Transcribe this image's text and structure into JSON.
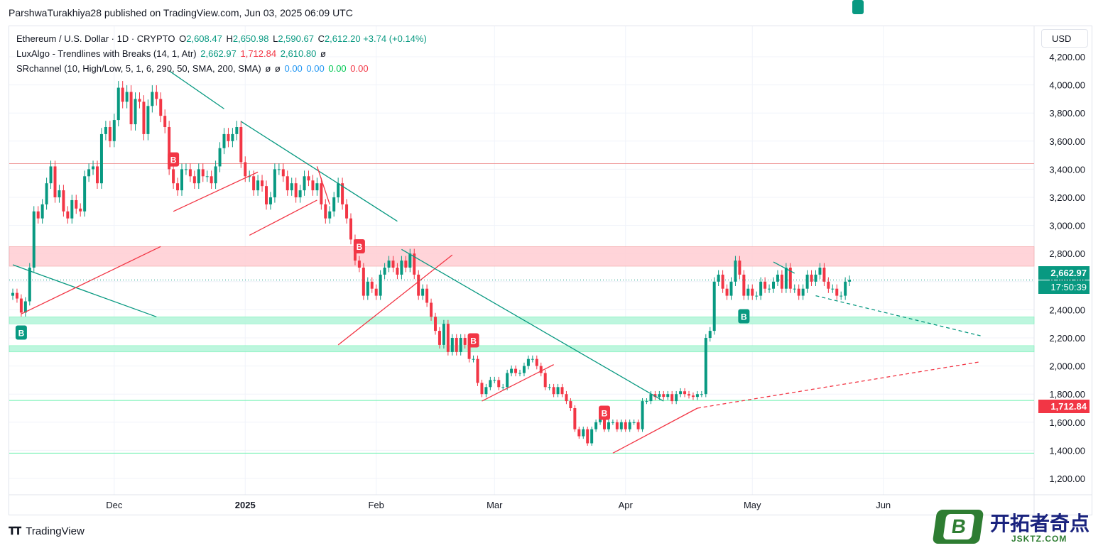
{
  "header": {
    "published_line": "ParshwaTurakhiya28 published on TradingView.com, Jun 03, 2025 06:09 UTC"
  },
  "legend": {
    "symbol_line": "Ethereum / U.S. Dollar · 1D · CRYPTO",
    "open_label": "O",
    "open": "2,608.47",
    "high_label": "H",
    "high": "2,650.98",
    "low_label": "L",
    "low": "2,590.67",
    "close_label": "C",
    "close": "2,612.20",
    "change": "+3.74 (+0.14%)",
    "luxalgo_title": "LuxAlgo - Trendlines with Breaks (14, 1, Atr)",
    "luxalgo_vals": [
      "2,662.97",
      "1,712.84",
      "2,610.80",
      "ø"
    ],
    "sr_title": "SRchannel (10, High/Low, 5, 1, 6, 290, 50, SMA, 200, SMA)",
    "sr_vals": [
      "ø",
      "ø",
      "0.00",
      "0.00",
      "0.00",
      "0.00"
    ]
  },
  "currency": "USD",
  "price_tags": {
    "upper_trend": "2,662.97",
    "countdown": "17:50:39",
    "lower_trend": "1,712.84"
  },
  "footer": {
    "brand": "TradingView"
  },
  "watermark": {
    "title": "开拓者奇点",
    "subtitle": "JSKTZ.COM",
    "badge_letter": "B"
  },
  "colors": {
    "up": "#089981",
    "down": "#f23645",
    "resistance_zone": "#ffcdd2",
    "support_zone": "#b2f5d8",
    "price_line": "#089981",
    "lower_line": "#f23645"
  },
  "chart_data": {
    "type": "candlestick",
    "symbol": "ETHUSD",
    "ylim": [
      1150,
      4300
    ],
    "yticks": [
      "1,200.00",
      "1,400.00",
      "1,600.00",
      "1,800.00",
      "2,000.00",
      "2,200.00",
      "2,400.00",
      "2,600.00",
      "2,800.00",
      "3,000.00",
      "3,200.00",
      "3,400.00",
      "3,600.00",
      "3,800.00",
      "4,000.00",
      "4,200.00"
    ],
    "ytick_values": [
      1200,
      1400,
      1600,
      1800,
      2000,
      2200,
      2400,
      2600,
      2800,
      3000,
      3200,
      3400,
      3600,
      3800,
      4000,
      4200
    ],
    "xticks": [
      {
        "label": "Dec",
        "index": 24
      },
      {
        "label": "2025",
        "index": 55,
        "bold": true
      },
      {
        "label": "Feb",
        "index": 86
      },
      {
        "label": "Mar",
        "index": 114
      },
      {
        "label": "Apr",
        "index": 145
      },
      {
        "label": "May",
        "index": 175
      },
      {
        "label": "Jun",
        "index": 206
      }
    ],
    "closes": [
      2520,
      2480,
      2380,
      2460,
      2700,
      3100,
      3050,
      3150,
      3300,
      3420,
      3200,
      3250,
      3100,
      3050,
      3180,
      3120,
      3100,
      3350,
      3400,
      3420,
      3300,
      3650,
      3700,
      3600,
      3750,
      3980,
      3880,
      3950,
      3720,
      3900,
      3880,
      3650,
      3850,
      3950,
      3900,
      3780,
      3700,
      3400,
      3300,
      3250,
      3400,
      3400,
      3350,
      3300,
      3400,
      3350,
      3350,
      3300,
      3420,
      3550,
      3650,
      3600,
      3650,
      3700,
      3450,
      3350,
      3350,
      3250,
      3320,
      3280,
      3150,
      3200,
      3400,
      3400,
      3350,
      3250,
      3300,
      3200,
      3250,
      3350,
      3320,
      3250,
      3300,
      3150,
      3050,
      3100,
      3200,
      3300,
      3150,
      3050,
      2900,
      2750,
      2700,
      2500,
      2600,
      2550,
      2500,
      2650,
      2700,
      2750,
      2700,
      2650,
      2750,
      2700,
      2800,
      2650,
      2500,
      2550,
      2450,
      2350,
      2250,
      2150,
      2300,
      2100,
      2200,
      2100,
      2200,
      2150,
      2050,
      2050,
      1880,
      1800,
      1850,
      1900,
      1900,
      1850,
      1850,
      1950,
      1980,
      1950,
      1950,
      2000,
      2050,
      2050,
      2000,
      1950,
      1850,
      1850,
      1800,
      1850,
      1800,
      1750,
      1700,
      1550,
      1500,
      1550,
      1450,
      1550,
      1600,
      1650,
      1550,
      1600,
      1600,
      1550,
      1600,
      1550,
      1600,
      1600,
      1550,
      1750,
      1750,
      1800,
      1780,
      1800,
      1780,
      1800,
      1750,
      1800,
      1820,
      1800,
      1790,
      1780,
      1800,
      1800,
      2200,
      2250,
      2600,
      2650,
      2550,
      2500,
      2600,
      2750,
      2650,
      2500,
      2550,
      2500,
      2500,
      2600,
      2550,
      2550,
      2600,
      2650,
      2550,
      2700,
      2550,
      2550,
      2500,
      2550,
      2650,
      2600,
      2650,
      2700,
      2600,
      2550,
      2550,
      2500,
      2500,
      2600,
      2612.2
    ],
    "breaks": [
      {
        "index": 2,
        "type": "up"
      },
      {
        "index": 38,
        "type": "down"
      },
      {
        "index": 82,
        "type": "down"
      },
      {
        "index": 109,
        "type": "down"
      },
      {
        "index": 140,
        "type": "down"
      },
      {
        "index": 173,
        "type": "up"
      },
      {
        "index": 200,
        "type": "up"
      }
    ],
    "break_label": "B",
    "zones": [
      {
        "type": "resistance",
        "from": 2710,
        "to": 2850
      },
      {
        "type": "support",
        "from": 2300,
        "to": 2350
      },
      {
        "type": "support",
        "from": 2100,
        "to": 2145
      }
    ],
    "hlines": [
      {
        "price": 3440,
        "type": "resistance"
      },
      {
        "price": 1755,
        "type": "support"
      },
      {
        "price": 1380,
        "type": "support"
      }
    ],
    "trendlines": [
      {
        "from": [
          0,
          2720
        ],
        "to": [
          34,
          2350
        ],
        "type": "down"
      },
      {
        "from": [
          2,
          2370
        ],
        "to": [
          35,
          2850
        ],
        "type": "up"
      },
      {
        "from": [
          37,
          4100
        ],
        "to": [
          50,
          3830
        ],
        "type": "down"
      },
      {
        "from": [
          38,
          3100
        ],
        "to": [
          58,
          3380
        ],
        "type": "up"
      },
      {
        "from": [
          54,
          3740
        ],
        "to": [
          91,
          3030
        ],
        "type": "down"
      },
      {
        "from": [
          56,
          2930
        ],
        "to": [
          72,
          3180
        ],
        "type": "up"
      },
      {
        "from": [
          72,
          3420
        ],
        "to": [
          75,
          3150
        ],
        "type": "up"
      },
      {
        "from": [
          77,
          2150
        ],
        "to": [
          104,
          2790
        ],
        "type": "up"
      },
      {
        "from": [
          92,
          2830
        ],
        "to": [
          154,
          1750
        ],
        "type": "down"
      },
      {
        "from": [
          111,
          1750
        ],
        "to": [
          128,
          2010
        ],
        "type": "up"
      },
      {
        "from": [
          142,
          1380
        ],
        "to": [
          162,
          1700
        ],
        "type": "up"
      },
      {
        "from": [
          162,
          1700
        ],
        "to": [
          229,
          2030
        ],
        "type": "up",
        "dashed": true
      },
      {
        "from": [
          180,
          2740
        ],
        "to": [
          185,
          2660
        ],
        "type": "down"
      },
      {
        "from": [
          190,
          2500
        ],
        "to": [
          229,
          2215
        ],
        "type": "down",
        "dashed": true
      }
    ],
    "current_price": 2612.2
  }
}
